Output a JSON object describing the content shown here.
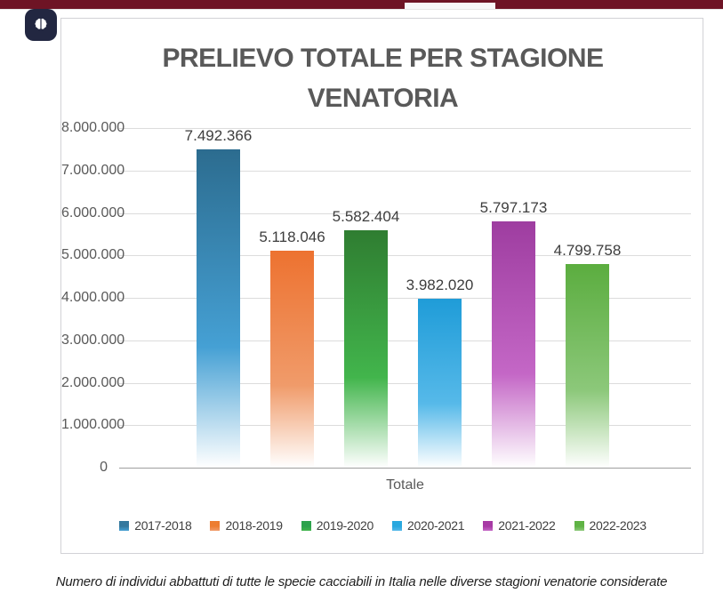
{
  "page": {
    "topbar_color": "#6e1425",
    "topbar_notch_color": "#f7f7f8",
    "card_border_color": "#d2d2d6",
    "badge_color": "#222741"
  },
  "badge": {
    "icon": "brain-icon"
  },
  "chart_data": {
    "type": "bar",
    "title": "PRELIEVO TOTALE PER STAGIONE VENATORIA",
    "title_lines": [
      "PRELIEVO TOTALE PER STAGIONE",
      "VENATORIA"
    ],
    "categories": [
      "2017-2018",
      "2018-2019",
      "2019-2020",
      "2020-2021",
      "2021-2022",
      "2022-2023"
    ],
    "values": [
      7492366,
      5118046,
      5582404,
      3982020,
      5797173,
      4799758
    ],
    "values_formatted": [
      "7.492.366",
      "5.118.046",
      "5.582.404",
      "3.982.020",
      "5.797.173",
      "4.799.758"
    ],
    "xlabel": "Totale",
    "ylim": [
      0,
      8000000
    ],
    "ytick_step": 1000000,
    "ytick_labels": [
      "0",
      "1.000.000",
      "2.000.000",
      "3.000.000",
      "4.000.000",
      "5.000.000",
      "6.000.000",
      "7.000.000",
      "8.000.000"
    ],
    "grid": true,
    "legend_position": "bottom",
    "bar_colors": [
      {
        "top": "#2c6c8f",
        "mid": "#45a0d4",
        "legend": "#34789e"
      },
      {
        "top": "#ed7230",
        "mid": "#f09b6a",
        "legend": "#ed7d31"
      },
      {
        "top": "#2f7d31",
        "mid": "#42b54c",
        "legend": "#2ca24c"
      },
      {
        "top": "#1f9cd8",
        "mid": "#56b9e9",
        "legend": "#29a8df"
      },
      {
        "top": "#9e3da0",
        "mid": "#c467c6",
        "legend": "#a73aa5"
      },
      {
        "top": "#5bad3f",
        "mid": "#8cc87a",
        "legend": "#5fb344"
      }
    ]
  },
  "caption": "Numero di individui abbattuti di tutte le specie cacciabili in Italia nelle diverse stagioni venatorie considerate"
}
